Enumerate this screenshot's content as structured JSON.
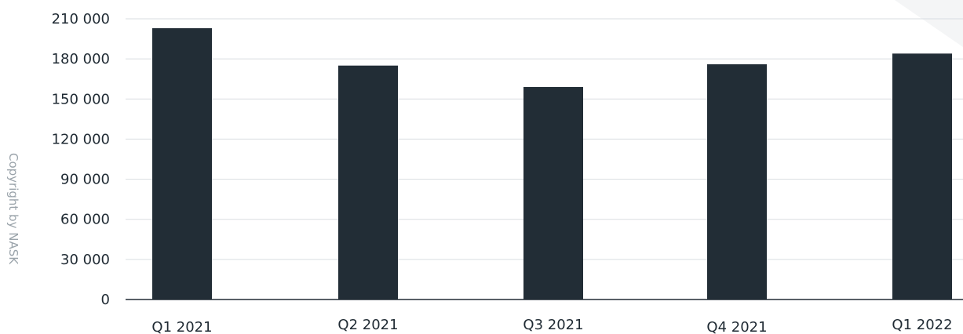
{
  "copyright": "Copyright by NASK",
  "colors": {
    "bar": "#222d36",
    "grid": "#d9dde1",
    "text": "#1f2a33",
    "copyright": "#9aa3aa",
    "corner_shade": "#f4f5f6"
  },
  "chart_data": {
    "type": "bar",
    "categories": [
      "Q1 2021",
      "Q2 2021",
      "Q3 2021",
      "Q4 2021",
      "Q1 2022"
    ],
    "values": [
      203000,
      175000,
      159000,
      176000,
      184000
    ],
    "ylim": [
      0,
      210000
    ],
    "yticks": [
      0,
      30000,
      60000,
      90000,
      120000,
      150000,
      180000,
      210000
    ],
    "ytick_labels": [
      "0",
      "30 000",
      "60 000",
      "90 000",
      "120 000",
      "150 000",
      "180 000",
      "210 000"
    ],
    "grid": true,
    "legend": "none"
  }
}
